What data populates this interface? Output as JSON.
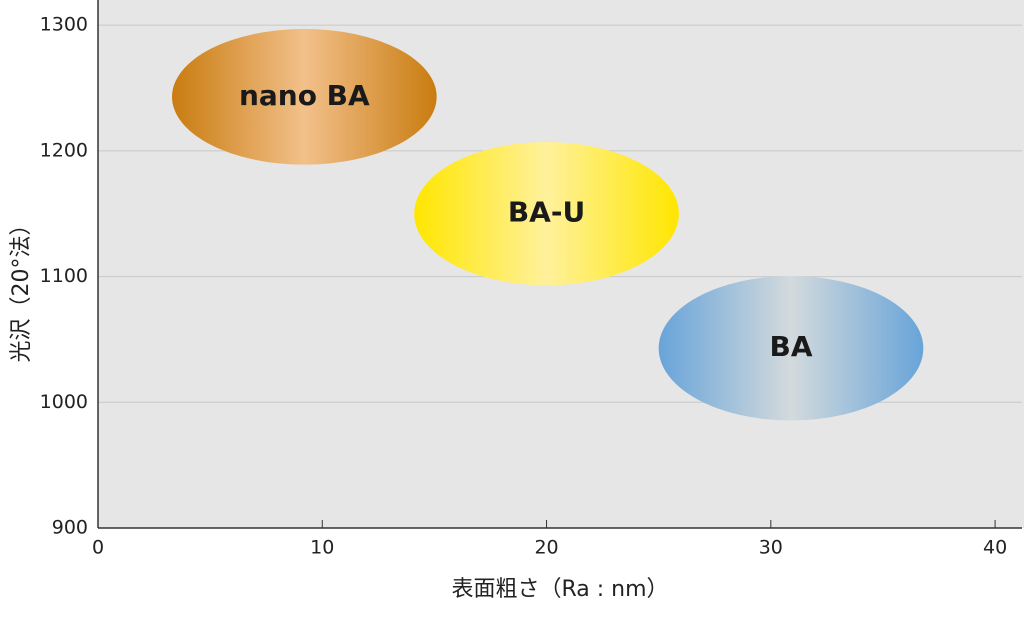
{
  "chart_data": {
    "type": "ellipse",
    "xlabel": "表面粗さ（Ra : nm）",
    "ylabel": "光沢（20°法）",
    "xlim": [
      0,
      41.2
    ],
    "ylim": [
      900,
      1320
    ],
    "xticks": [
      0,
      10,
      20,
      30,
      40
    ],
    "yticks": [
      900,
      1000,
      1100,
      1200,
      1300
    ],
    "grid": true,
    "series": [
      {
        "name": "nano BA",
        "x": 9.2,
        "y": 1243,
        "width": 11.8,
        "height": 108,
        "color": "#c97c10",
        "center_color": "#f2c08a"
      },
      {
        "name": "BA-U",
        "x": 20.0,
        "y": 1150,
        "width": 11.8,
        "height": 114,
        "color": "#ffe600",
        "center_color": "#fff19c"
      },
      {
        "name": "BA",
        "x": 30.9,
        "y": 1043,
        "width": 11.8,
        "height": 115,
        "color": "#68a4d9",
        "center_color": "#d3dadc"
      }
    ]
  }
}
